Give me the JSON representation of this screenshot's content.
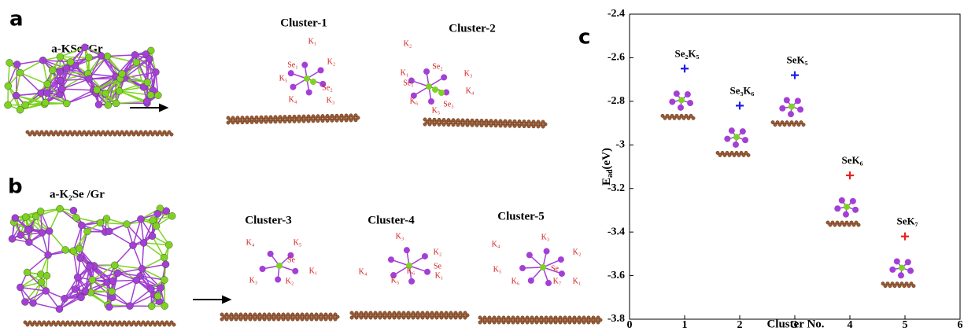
{
  "panels": {
    "a": {
      "label": "a",
      "title": "a-KSe /Gr",
      "clusters": [
        {
          "title": "Cluster-1",
          "atoms": [
            "K₁",
            "K₂",
            "Se₁",
            "K₅",
            "Se₂",
            "K₄",
            "K₃"
          ]
        },
        {
          "title": "Cluster-2",
          "atoms": [
            "K₂",
            "Se₂",
            "K₁",
            "K₃",
            "Se₁",
            "K₄",
            "K₆",
            "Se₃",
            "K₅"
          ]
        }
      ]
    },
    "b": {
      "label": "b",
      "title": "a-K₂Se /Gr",
      "clusters": [
        {
          "title": "Cluster-3",
          "atoms": [
            "K₄",
            "K₅",
            "Se",
            "K₃",
            "K₂",
            "K₁"
          ]
        },
        {
          "title": "Cluster-4",
          "atoms": [
            "K₃",
            "K₂",
            "Se",
            "K₄",
            "K₆",
            "K₅",
            "K₁"
          ]
        },
        {
          "title": "Cluster-5",
          "atoms": [
            "K₄",
            "K₃",
            "K₂",
            "K₅",
            "Se",
            "K₆",
            "K₇",
            "K₁"
          ]
        }
      ]
    },
    "c": {
      "label": "c"
    }
  },
  "chart_data": {
    "type": "scatter",
    "marker": "+",
    "xlabel": "Cluster No.",
    "ylabel": [
      "E",
      "ad",
      "(eV)"
    ],
    "x": [
      1,
      2,
      3,
      4,
      5
    ],
    "values": [
      -2.65,
      -2.82,
      -2.68,
      -3.14,
      -3.42
    ],
    "colors": [
      "#1f1fe0",
      "#1f1fe0",
      "#1f1fe0",
      "#ee1c1c",
      "#ee1c1c"
    ],
    "point_labels": [
      "Se₂K₅",
      "Se₃K₆",
      "SeK₅",
      "SeK₆",
      "SeK₇"
    ],
    "xlim": [
      0,
      6
    ],
    "xticks": [
      0,
      1,
      2,
      3,
      4,
      5,
      6
    ],
    "ylim": [
      -3.8,
      -2.4
    ],
    "yticks": [
      -3.8,
      -3.6,
      -3.4,
      -3.2,
      -3,
      -2.8,
      -2.6,
      -2.4
    ]
  }
}
